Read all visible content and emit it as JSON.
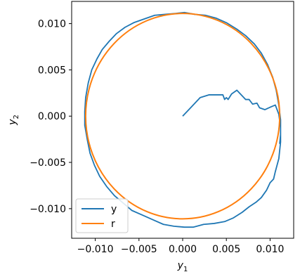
{
  "chart_data": {
    "type": "line",
    "title": "",
    "xlabel": "y",
    "xlabel_sub": "1",
    "ylabel": "y",
    "ylabel_sub": "2",
    "xlim": [
      -0.0127,
      0.0127
    ],
    "ylim": [
      -0.0132,
      0.0124
    ],
    "xticks": [
      -0.01,
      -0.005,
      0.0,
      0.005,
      0.01
    ],
    "xtick_labels": [
      "−0.010",
      "−0.005",
      "0.000",
      "0.005",
      "0.010"
    ],
    "yticks": [
      -0.01,
      -0.005,
      0.0,
      0.005,
      0.01
    ],
    "ytick_labels": [
      "−0.010",
      "−0.005",
      "0.000",
      "0.005",
      "0.010"
    ],
    "grid": false,
    "legend_position": "bottom-left",
    "series": [
      {
        "name": "y",
        "color": "#1f77b4",
        "points": [
          [
            0.0,
            0.0
          ],
          [
            0.001,
            0.001
          ],
          [
            0.002,
            0.002
          ],
          [
            0.003,
            0.0023
          ],
          [
            0.0042,
            0.0023
          ],
          [
            0.0046,
            0.0023
          ],
          [
            0.0048,
            0.0018
          ],
          [
            0.005,
            0.002
          ],
          [
            0.0052,
            0.0018
          ],
          [
            0.0056,
            0.0024
          ],
          [
            0.0062,
            0.0028
          ],
          [
            0.0066,
            0.0024
          ],
          [
            0.0072,
            0.0018
          ],
          [
            0.0076,
            0.0018
          ],
          [
            0.008,
            0.0013
          ],
          [
            0.0085,
            0.0014
          ],
          [
            0.0088,
            0.0009
          ],
          [
            0.0094,
            0.0007
          ],
          [
            0.0101,
            0.001
          ],
          [
            0.0106,
            0.0012
          ],
          [
            0.011,
            0.0002
          ],
          [
            0.0112,
            -0.0012
          ],
          [
            0.0112,
            -0.0028
          ],
          [
            0.011,
            -0.0046
          ],
          [
            0.0106,
            -0.006
          ],
          [
            0.0104,
            -0.0068
          ],
          [
            0.01,
            -0.0072
          ],
          [
            0.0096,
            -0.008
          ],
          [
            0.009,
            -0.0088
          ],
          [
            0.0084,
            -0.0093
          ],
          [
            0.0076,
            -0.0098
          ],
          [
            0.0068,
            -0.0104
          ],
          [
            0.0058,
            -0.011
          ],
          [
            0.0048,
            -0.0114
          ],
          [
            0.0036,
            -0.0116
          ],
          [
            0.0024,
            -0.0117
          ],
          [
            0.0012,
            -0.012
          ],
          [
            0.0002,
            -0.012
          ],
          [
            -0.001,
            -0.0119
          ],
          [
            -0.0022,
            -0.0117
          ],
          [
            -0.0034,
            -0.0112
          ],
          [
            -0.0046,
            -0.0107
          ],
          [
            -0.0058,
            -0.0102
          ],
          [
            -0.0068,
            -0.0094
          ],
          [
            -0.0078,
            -0.0086
          ],
          [
            -0.0087,
            -0.0076
          ],
          [
            -0.0095,
            -0.0065
          ],
          [
            -0.0101,
            -0.0053
          ],
          [
            -0.0106,
            -0.004
          ],
          [
            -0.0109,
            -0.0026
          ],
          [
            -0.0112,
            -0.001
          ],
          [
            -0.0112,
            0.0005
          ],
          [
            -0.0111,
            0.002
          ],
          [
            -0.0108,
            0.0036
          ],
          [
            -0.0104,
            0.005
          ],
          [
            -0.0098,
            0.0062
          ],
          [
            -0.0092,
            0.0072
          ],
          [
            -0.0084,
            0.0081
          ],
          [
            -0.0076,
            0.0089
          ],
          [
            -0.0066,
            0.0096
          ],
          [
            -0.0056,
            0.0101
          ],
          [
            -0.0044,
            0.0105
          ],
          [
            -0.0032,
            0.0109
          ],
          [
            -0.002,
            0.011
          ],
          [
            -0.0008,
            0.0111
          ],
          [
            0.0002,
            0.0112
          ],
          [
            0.0014,
            0.011
          ],
          [
            0.0026,
            0.0109
          ],
          [
            0.0038,
            0.0106
          ],
          [
            0.005,
            0.0101
          ],
          [
            0.0062,
            0.0094
          ],
          [
            0.0072,
            0.0087
          ],
          [
            0.0082,
            0.0078
          ],
          [
            0.009,
            0.0068
          ],
          [
            0.0097,
            0.0056
          ],
          [
            0.0103,
            0.0042
          ],
          [
            0.0107,
            0.0028
          ],
          [
            0.011,
            0.0012
          ],
          [
            0.0112,
            -0.0004
          ],
          [
            0.0112,
            -0.002
          ],
          [
            0.0111,
            -0.003
          ]
        ]
      },
      {
        "name": "r",
        "color": "#ff7f0e",
        "shape": "circle",
        "radius": 0.0111,
        "center": [
          0.0,
          0.0
        ]
      }
    ]
  }
}
